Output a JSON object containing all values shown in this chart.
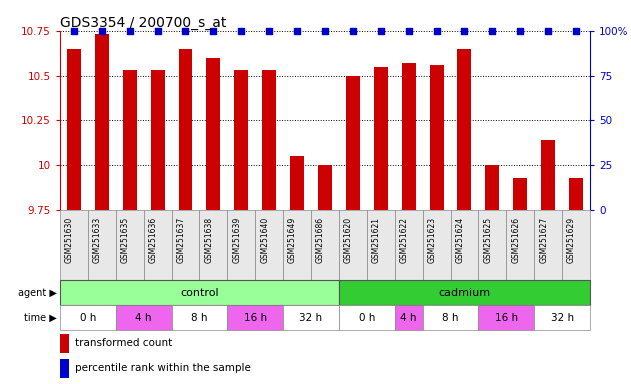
{
  "title": "GDS3354 / 200700_s_at",
  "samples": [
    "GSM251630",
    "GSM251633",
    "GSM251635",
    "GSM251636",
    "GSM251637",
    "GSM251638",
    "GSM251639",
    "GSM251640",
    "GSM251649",
    "GSM251686",
    "GSM251620",
    "GSM251621",
    "GSM251622",
    "GSM251623",
    "GSM251624",
    "GSM251625",
    "GSM251626",
    "GSM251627",
    "GSM251629"
  ],
  "bar_values": [
    10.65,
    10.73,
    10.53,
    10.53,
    10.65,
    10.6,
    10.53,
    10.53,
    10.05,
    10.0,
    10.5,
    10.55,
    10.57,
    10.56,
    10.65,
    10.0,
    9.93,
    10.14,
    9.93
  ],
  "percentile_values": [
    100,
    100,
    100,
    100,
    100,
    100,
    100,
    100,
    100,
    100,
    100,
    100,
    100,
    100,
    100,
    100,
    100,
    100,
    100
  ],
  "bar_color": "#cc0000",
  "percentile_color": "#0000cc",
  "ymin": 9.75,
  "ymax": 10.75,
  "yticks": [
    9.75,
    10.0,
    10.25,
    10.5,
    10.75
  ],
  "ytick_labels": [
    "9.75",
    "10",
    "10.25",
    "10.5",
    "10.75"
  ],
  "right_yticks": [
    0,
    25,
    50,
    75,
    100
  ],
  "right_ytick_labels": [
    "0",
    "25",
    "50",
    "75",
    "100%"
  ],
  "agent_control_label": "control",
  "agent_cadmium_label": "cadmium",
  "agent_label": "agent",
  "time_label": "time",
  "time_labels_control": [
    "0 h",
    "4 h",
    "8 h",
    "16 h",
    "32 h"
  ],
  "time_labels_cadmium": [
    "0 h",
    "4 h",
    "8 h",
    "16 h",
    "32 h"
  ],
  "control_color": "#99ff99",
  "cadmium_color": "#33cc33",
  "time_alt_color": "#ee66ee",
  "time_base_color": "#ffffff",
  "legend_bar_label": "transformed count",
  "legend_dot_label": "percentile rank within the sample",
  "n_control": 10,
  "n_cadmium": 9,
  "control_time_groups": [
    2,
    2,
    2,
    2,
    2
  ],
  "cadmium_time_groups": [
    2,
    1,
    2,
    2,
    2
  ],
  "bg_color": "#e8e8e8"
}
